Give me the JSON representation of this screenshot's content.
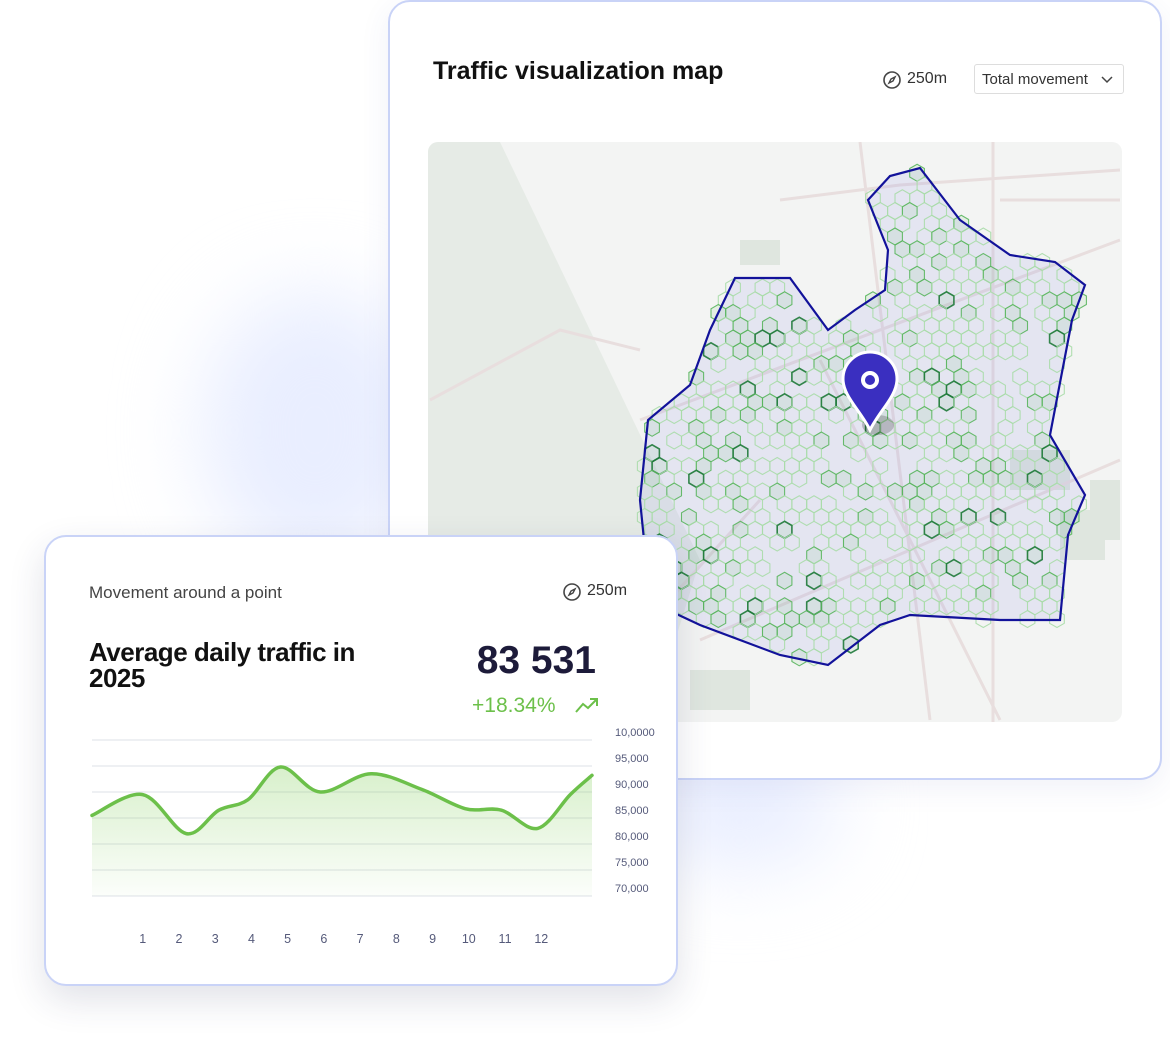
{
  "map_card": {
    "title": "Traffic visualization map",
    "radius": "250m",
    "dropdown": "Total movement"
  },
  "traffic_card": {
    "subtitle": "Movement around a point",
    "radius": "250m",
    "title": "Average daily traffic in 2025",
    "value": "83 531",
    "change": "+18.34%"
  },
  "chart_data": {
    "type": "line",
    "x": [
      -0.4,
      1,
      2.2,
      3.1,
      3.9,
      4.8,
      5.9,
      7.3,
      8.7,
      9.9,
      10.9,
      11.9,
      12.8,
      13.4
    ],
    "series": [
      {
        "name": "Average daily traffic",
        "color": "#6cc04a",
        "values": [
          85500,
          89500,
          82000,
          86500,
          88500,
          94800,
          90000,
          93500,
          90500,
          86800,
          86500,
          83000,
          89500,
          93200
        ]
      }
    ],
    "xlim": [
      -0.4,
      13.4
    ],
    "xticks": [
      1,
      2,
      3,
      4,
      5,
      6,
      7,
      8,
      9,
      10,
      11,
      12
    ],
    "ylim": [
      70000,
      100000
    ],
    "yticks": [
      {
        "value": 100000,
        "label": "10,0000"
      },
      {
        "value": 95000,
        "label": "95,000"
      },
      {
        "value": 90000,
        "label": "90,000"
      },
      {
        "value": 85000,
        "label": "85,000"
      },
      {
        "value": 80000,
        "label": "80,000"
      },
      {
        "value": 75000,
        "label": "75,000"
      },
      {
        "value": 70000,
        "label": "70,000"
      }
    ],
    "grid": true
  }
}
